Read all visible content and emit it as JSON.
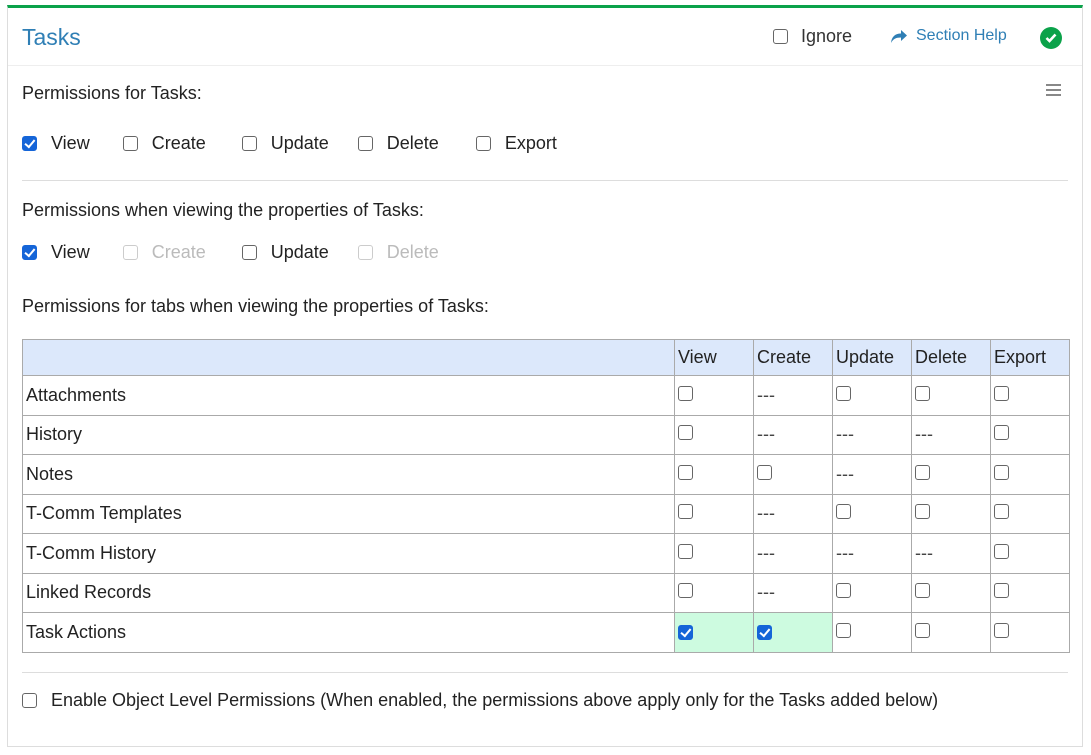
{
  "header": {
    "title": "Tasks",
    "ignore_label": "Ignore",
    "ignore_checked": false,
    "help_label": "Section Help",
    "status_icon": "check-circle-icon",
    "accent": "#0ba24a"
  },
  "section1": {
    "label": "Permissions for Tasks:",
    "options": [
      {
        "label": "View",
        "checked": true,
        "disabled": false
      },
      {
        "label": "Create",
        "checked": false,
        "disabled": false
      },
      {
        "label": "Update",
        "checked": false,
        "disabled": false
      },
      {
        "label": "Delete",
        "checked": false,
        "disabled": false
      },
      {
        "label": "Export",
        "checked": false,
        "disabled": false
      }
    ]
  },
  "section2": {
    "label": "Permissions when viewing the properties of Tasks:",
    "options": [
      {
        "label": "View",
        "checked": true,
        "disabled": false
      },
      {
        "label": "Create",
        "checked": false,
        "disabled": true
      },
      {
        "label": "Update",
        "checked": false,
        "disabled": false
      },
      {
        "label": "Delete",
        "checked": false,
        "disabled": true
      }
    ]
  },
  "section3": {
    "label": "Permissions for tabs when viewing the properties of Tasks:",
    "columns": [
      "",
      "View",
      "Create",
      "Update",
      "Delete",
      "Export"
    ],
    "na_text": "---",
    "rows": [
      {
        "name": "Attachments",
        "cells": [
          "off",
          "na",
          "off",
          "off",
          "off"
        ]
      },
      {
        "name": "History",
        "cells": [
          "off",
          "na",
          "na",
          "na",
          "off"
        ]
      },
      {
        "name": "Notes",
        "cells": [
          "off",
          "off",
          "na",
          "off",
          "off"
        ]
      },
      {
        "name": "T-Comm Templates",
        "cells": [
          "off",
          "na",
          "off",
          "off",
          "off"
        ]
      },
      {
        "name": "T-Comm History",
        "cells": [
          "off",
          "na",
          "na",
          "na",
          "off"
        ]
      },
      {
        "name": "Linked Records",
        "cells": [
          "off",
          "na",
          "off",
          "off",
          "off"
        ]
      },
      {
        "name": "Task Actions",
        "cells": [
          "on",
          "on",
          "off",
          "off",
          "off"
        ]
      }
    ]
  },
  "object_level": {
    "label": "Enable Object Level Permissions (When enabled, the permissions above apply only for the Tasks added below)",
    "checked": false
  }
}
